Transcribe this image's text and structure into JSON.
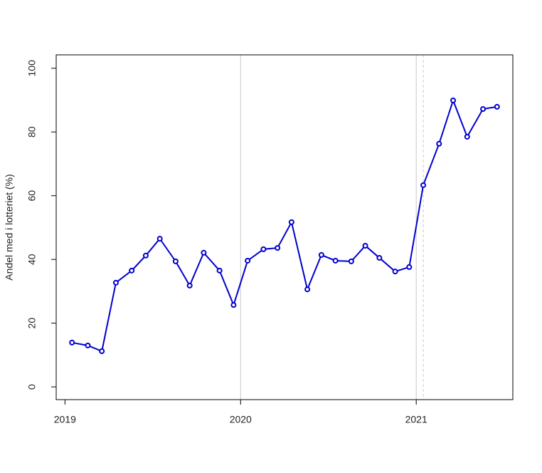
{
  "chart_data": {
    "type": "line",
    "y_label": "Andel med i lotteriet (%)",
    "x": [
      2019.04,
      2019.13,
      2019.21,
      2019.29,
      2019.38,
      2019.46,
      2019.54,
      2019.63,
      2019.71,
      2019.79,
      2019.88,
      2019.96,
      2020.04,
      2020.13,
      2020.21,
      2020.29,
      2020.38,
      2020.46,
      2020.54,
      2020.63,
      2020.71,
      2020.79,
      2020.88,
      2020.96,
      2021.04,
      2021.13,
      2021.21,
      2021.29,
      2021.38,
      2021.46
    ],
    "series": [
      {
        "color": "#0000cc",
        "values": [
          13.9,
          13.0,
          11.2,
          32.7,
          36.5,
          41.2,
          46.5,
          39.4,
          31.8,
          42.1,
          36.5,
          25.7,
          39.6,
          43.2,
          43.6,
          51.7,
          30.6,
          41.4,
          39.6,
          39.4,
          44.3,
          40.5,
          36.2,
          37.6,
          63.3,
          76.3,
          89.9,
          78.5,
          87.2,
          87.9
        ]
      }
    ],
    "xlim": [
      2018.95,
      2021.55
    ],
    "xticks": [
      2019,
      2020,
      2021
    ],
    "ylim": [
      -4,
      104.2
    ],
    "yticks": [
      0,
      20,
      40,
      60,
      80,
      100
    ],
    "vlines": [
      {
        "x": 2020,
        "dash": "solid"
      },
      {
        "x": 2021,
        "dash": "solid"
      },
      {
        "x": 2021.04,
        "dash": "dashed"
      }
    ],
    "vline_color": "#c8c8c8"
  }
}
